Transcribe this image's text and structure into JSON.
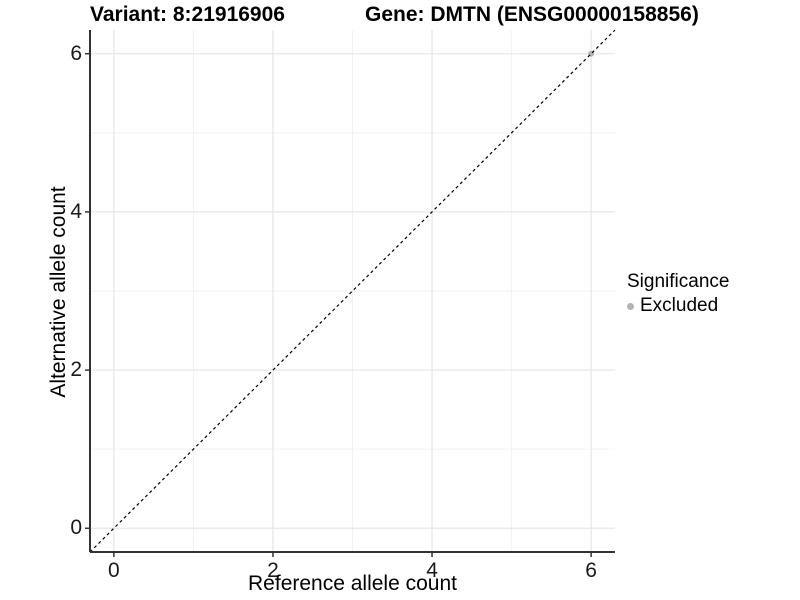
{
  "chart_data": {
    "type": "scatter",
    "title_left": "Variant: 8:21916906",
    "title_right": "Gene: DMTN (ENSG00000158856)",
    "xlabel": "Reference allele count",
    "ylabel": "Alternative allele count",
    "xlim": [
      -0.3,
      6.3
    ],
    "ylim": [
      -0.3,
      6.3
    ],
    "xticks": [
      0,
      2,
      4,
      6
    ],
    "yticks": [
      0,
      2,
      4,
      6
    ],
    "xticks_minor": [
      1,
      3,
      5
    ],
    "yticks_minor": [
      1,
      3,
      5
    ],
    "grid": "major+minor",
    "reference_line": {
      "type": "identity",
      "slope": 1,
      "intercept": 0,
      "style": "dashed",
      "color": "#000000"
    },
    "series": [
      {
        "name": "Excluded",
        "color": "#b3b3b3",
        "points": [
          {
            "x": 6,
            "y": 6
          }
        ]
      }
    ],
    "legend": {
      "title": "Significance",
      "position": "right",
      "items": [
        {
          "label": "Excluded",
          "color": "#b3b3b3"
        }
      ]
    },
    "colors": {
      "background": "#ffffff",
      "grid_major": "#e7e7e7",
      "grid_minor": "#f2f2f2",
      "axis": "#333333",
      "tick_text": "#1a1a1a",
      "title_text": "#000000"
    }
  }
}
